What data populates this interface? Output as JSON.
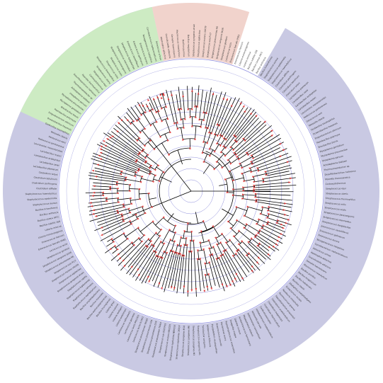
{
  "figure": {
    "background": "#ffffff",
    "ring_stroke": "#7f7fd6",
    "branch_color": "#000000",
    "marker_color": "#e03131",
    "ring_count": 9,
    "sectors": [
      {
        "name": "sector-a",
        "color": "#c9c9e3",
        "start_deg": 30,
        "end_deg": 348
      },
      {
        "name": "sector-b",
        "color": "#cdebc3",
        "start_deg": 295,
        "end_deg": 348
      },
      {
        "name": "sector-c",
        "color": "#f1d3cc",
        "start_deg": 348,
        "end_deg": 378
      }
    ]
  },
  "leaf_labels": [
    "Streptococcus pyogenes strain",
    "Streptococcus agalactiae",
    "Streptococcus mutans UA159",
    "Streptococcus suis P1/7",
    "Streptococcus pneumoniae R6",
    "Streptococcus sanguinis SK36",
    "Streptococcus gordonii",
    "Lactococcus lactis",
    "Enterococcus faecalis V583",
    "Enterococcus faecium",
    "Listeria monocytogenes",
    "Listeria innocua",
    "Bacillus subtilis 168",
    "Bacillus cereus ATCC",
    "Bacillus anthracis",
    "Bacillus licheniformis",
    "Staphylococcus aureus",
    "Staphylococcus epidermidis",
    "Staphylococcus haemolyticus",
    "Clostridium difficile",
    "Clostridium perfringens",
    "Clostridium botulinum",
    "Clostridium tetani",
    "Lactobacillus plantarum",
    "Lactobacillus casei",
    "Lactobacillus acidophilus",
    "Lactobacillus reuteri",
    "Leuconostoc mesenteroides",
    "Pediococcus pentosaceus",
    "Oenococcus oeni",
    "Weissella cibaria",
    "Geobacillus kaustophilus",
    "Oceanobacillus iheyensis",
    "Exiguobacterium sibiricum",
    "Paenibacillus polymyxa",
    "Brevibacillus brevis",
    "Mycoplasma genitalium",
    "Mycoplasma pneumoniae",
    "Ureaplasma parvum",
    "Acholeplasma laidlawii",
    "Thermoanaerobacter sp.",
    "Desulfitobacterium hafniense",
    "Moorella thermoacetica",
    "Carboxydothermus",
    "Streptococcus equi",
    "Streptococcus uberis",
    "Streptococcus thermophilus",
    "Streptococcus mitis",
    "Streptococcus oralis",
    "Streptococcus parasanguinis",
    "Streptococcus intermedius",
    "Streptococcus dysgalactiae",
    "Enterococcus casseliflavus",
    "Enterococcus gallinarum",
    "Enterococcus durans",
    "Tetragenococcus halophilus",
    "Carnobacterium maltaromaticum",
    "Aerococcus urinae",
    "Abiotrophia defectiva",
    "Granulicatella adiacens",
    "Gemella haemolysans",
    "Macrococcus caseolyticus",
    "Bacillus pumilus",
    "Bacillus megaterium",
    "Bacillus halodurans",
    "Bacillus clausii",
    "Alkaliphilus metalliredigens",
    "Eubacterium rectale",
    "Roseburia intestinalis",
    "Ruminococcus gnavus",
    "Faecalibacterium prausnitzii",
    "Clostridium acetobutylicum",
    "Clostridium beijerinckii",
    "Clostridium thermocellum",
    "Caldicellulosiruptor",
    "Heliobacterium modesticaldum",
    "Veillonella parvula",
    "Selenomonas ruminantium",
    "Megasphaera elsdenii",
    "Acidaminococcus fermentans",
    "Dialister invisus",
    "Finegoldia magna",
    "Peptostreptococcus anaerobius",
    "Parvimonas micra",
    "Anaerococcus prevotii",
    "Erysipelothrix rhusiopathiae",
    "Holdemania filiformis",
    "Turicibacter sanguinis",
    "Streptococcus pyogenes M1",
    "Streptococcus pyogenes M3",
    "Streptococcus pyogenes M6",
    "Streptococcus pyogenes M18",
    "Streptococcus agalactiae 2603V",
    "Streptococcus agalactiae NEM316",
    "Streptococcus mutans NN2025",
    "Streptococcus suis 05ZYH33",
    "Streptococcus pneumoniae TIGR4",
    "Streptococcus pneumoniae D39",
    "Streptococcus pneumoniae G54",
    "Streptococcus pneumoniae 70585",
    "Lactococcus lactis IL1403",
    "Lactococcus lactis MG1363",
    "Lactococcus garvieae",
    "Lactococcus raffinolactis",
    "Listeria welshimeri",
    "Listeria seeligeri",
    "Listeria ivanovii",
    "Listeria grayi",
    "Bacillus thuringiensis",
    "Bacillus weihenstephanensis",
    "Bacillus mycoides",
    "Bacillus amyloliquefaciens",
    "Staphylococcus saprophyticus",
    "Staphylococcus carnosus",
    "Staphylococcus lugdunensis",
    "Staphylococcus capitis"
  ]
}
